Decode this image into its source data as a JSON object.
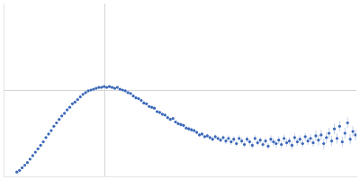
{
  "chart_data": {
    "type": "scatter",
    "color": "#3a67b8",
    "marker": "circle",
    "grid": true,
    "tick_labels": false,
    "xlim": [
      0,
      0.4
    ],
    "ylim": [
      0,
      2
    ],
    "xticks": [
      0.115
    ],
    "yticks": [
      1
    ],
    "x": [
      0.015,
      0.018,
      0.021,
      0.024,
      0.027,
      0.03,
      0.033,
      0.036,
      0.039,
      0.042,
      0.045,
      0.048,
      0.051,
      0.054,
      0.057,
      0.06,
      0.063,
      0.066,
      0.069,
      0.072,
      0.075,
      0.078,
      0.081,
      0.084,
      0.087,
      0.09,
      0.093,
      0.096,
      0.099,
      0.102,
      0.105,
      0.108,
      0.111,
      0.114,
      0.117,
      0.12,
      0.123,
      0.126,
      0.129,
      0.132,
      0.135,
      0.138,
      0.141,
      0.144,
      0.147,
      0.15,
      0.153,
      0.156,
      0.159,
      0.162,
      0.165,
      0.168,
      0.171,
      0.174,
      0.177,
      0.18,
      0.183,
      0.186,
      0.189,
      0.192,
      0.195,
      0.198,
      0.201,
      0.204,
      0.207,
      0.21,
      0.213,
      0.216,
      0.219,
      0.222,
      0.225,
      0.228,
      0.231,
      0.234,
      0.237,
      0.24,
      0.243,
      0.246,
      0.249,
      0.252,
      0.255,
      0.258,
      0.261,
      0.264,
      0.267,
      0.27,
      0.273,
      0.276,
      0.279,
      0.282,
      0.285,
      0.288,
      0.291,
      0.294,
      0.297,
      0.3,
      0.303,
      0.306,
      0.309,
      0.312,
      0.315,
      0.318,
      0.321,
      0.324,
      0.327,
      0.33,
      0.333,
      0.336,
      0.339,
      0.342,
      0.345,
      0.348,
      0.351,
      0.354,
      0.357,
      0.36,
      0.363,
      0.366,
      0.369,
      0.372,
      0.375,
      0.378,
      0.381,
      0.384,
      0.387,
      0.39,
      0.393,
      0.396,
      0.399
    ],
    "values": [
      0.05,
      0.07,
      0.1,
      0.13,
      0.16,
      0.2,
      0.24,
      0.28,
      0.32,
      0.36,
      0.4,
      0.45,
      0.49,
      0.53,
      0.58,
      0.62,
      0.66,
      0.7,
      0.73,
      0.77,
      0.8,
      0.84,
      0.86,
      0.89,
      0.92,
      0.95,
      0.97,
      0.99,
      1.0,
      1.01,
      1.02,
      1.03,
      1.03,
      1.04,
      1.03,
      1.04,
      1.03,
      1.02,
      1.03,
      1.01,
      1.0,
      0.99,
      0.97,
      0.96,
      0.93,
      0.91,
      0.9,
      0.88,
      0.85,
      0.84,
      0.81,
      0.8,
      0.79,
      0.75,
      0.74,
      0.72,
      0.71,
      0.68,
      0.66,
      0.67,
      0.63,
      0.61,
      0.6,
      0.59,
      0.56,
      0.55,
      0.54,
      0.53,
      0.51,
      0.48,
      0.49,
      0.46,
      0.47,
      0.45,
      0.43,
      0.46,
      0.44,
      0.42,
      0.45,
      0.41,
      0.44,
      0.4,
      0.43,
      0.38,
      0.44,
      0.41,
      0.37,
      0.43,
      0.4,
      0.36,
      0.44,
      0.39,
      0.42,
      0.37,
      0.41,
      0.35,
      0.43,
      0.4,
      0.38,
      0.42,
      0.37,
      0.44,
      0.39,
      0.41,
      0.36,
      0.45,
      0.4,
      0.43,
      0.38,
      0.46,
      0.41,
      0.44,
      0.39,
      0.47,
      0.42,
      0.48,
      0.38,
      0.45,
      0.5,
      0.41,
      0.55,
      0.44,
      0.58,
      0.4,
      0.5,
      0.62,
      0.43,
      0.52,
      0.48
    ],
    "errors": [
      0.005,
      0.005,
      0.005,
      0.005,
      0.005,
      0.005,
      0.005,
      0.005,
      0.005,
      0.005,
      0.005,
      0.005,
      0.005,
      0.005,
      0.005,
      0.005,
      0.005,
      0.005,
      0.005,
      0.005,
      0.005,
      0.005,
      0.005,
      0.005,
      0.005,
      0.005,
      0.005,
      0.005,
      0.005,
      0.01,
      0.01,
      0.01,
      0.01,
      0.01,
      0.01,
      0.01,
      0.01,
      0.01,
      0.01,
      0.01,
      0.01,
      0.01,
      0.01,
      0.01,
      0.01,
      0.01,
      0.015,
      0.015,
      0.015,
      0.015,
      0.015,
      0.015,
      0.015,
      0.015,
      0.015,
      0.015,
      0.015,
      0.015,
      0.015,
      0.015,
      0.015,
      0.015,
      0.025,
      0.025,
      0.025,
      0.025,
      0.025,
      0.025,
      0.025,
      0.025,
      0.025,
      0.025,
      0.025,
      0.025,
      0.025,
      0.025,
      0.025,
      0.025,
      0.025,
      0.035,
      0.035,
      0.035,
      0.035,
      0.035,
      0.035,
      0.035,
      0.035,
      0.035,
      0.035,
      0.035,
      0.035,
      0.035,
      0.035,
      0.035,
      0.035,
      0.035,
      0.045,
      0.045,
      0.045,
      0.045,
      0.045,
      0.045,
      0.045,
      0.045,
      0.045,
      0.045,
      0.045,
      0.045,
      0.045,
      0.045,
      0.045,
      0.045,
      0.045,
      0.06,
      0.06,
      0.06,
      0.06,
      0.06,
      0.06,
      0.06,
      0.06,
      0.06,
      0.06,
      0.06,
      0.06,
      0.06,
      0.06,
      0.06,
      0.06
    ]
  }
}
